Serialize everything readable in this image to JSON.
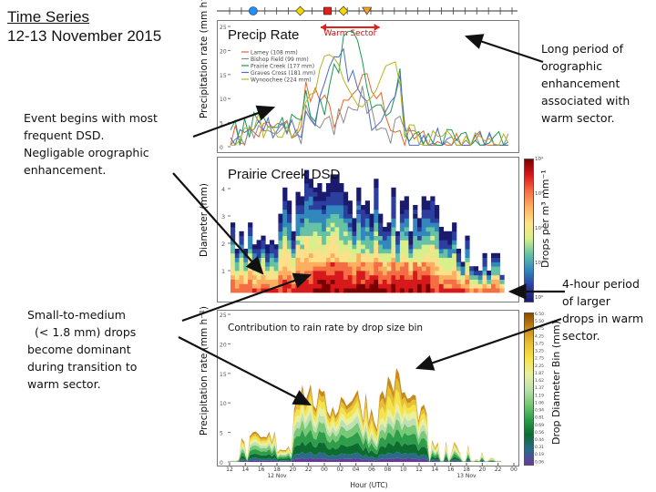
{
  "title": {
    "line1": "Time Series",
    "line2": "12-13 November 2015"
  },
  "annotations": {
    "event_begins": [
      "Event begins with most",
      "frequent DSD.",
      "Negligable orographic",
      "enhancement."
    ],
    "small_to_medium": [
      "Small-to-medium",
      "(< 1.8 mm) drops",
      "become dominant",
      "during transition to",
      "warm sector."
    ],
    "long_period": [
      "Long period of",
      "orographic",
      "enhancement",
      "associated with",
      "warm sector."
    ],
    "four_hour": [
      "4-hour period",
      "of larger",
      "drops in warm",
      "sector."
    ]
  },
  "colors": {
    "warm_sector": "#e0201a",
    "arrow": "#111111"
  },
  "chart_data": [
    {
      "type": "line",
      "title": "Precip Rate",
      "warm_sector_label": "Warm Sector",
      "ylabel": "Precipitation rate (mm h⁻¹)",
      "xlabel": "",
      "ylim": [
        0,
        25
      ],
      "yticks": [
        0,
        5,
        10,
        15,
        20,
        25
      ],
      "markers": [
        {
          "hour": 3.0,
          "shape": "circle",
          "color": "#1e90ff"
        },
        {
          "hour": 9.0,
          "shape": "diamond",
          "color": "#f2d800"
        },
        {
          "hour": 12.5,
          "shape": "square",
          "color": "#e0201a"
        },
        {
          "hour": 14.5,
          "shape": "diamond",
          "color": "#f2d800"
        },
        {
          "hour": 17.5,
          "shape": "triangle",
          "color": "#f0a020"
        }
      ],
      "warm_sector_range": [
        11.5,
        19.0
      ],
      "series": [
        {
          "name": "Lamey (108 mm)",
          "color": "#e8632a"
        },
        {
          "name": "Bishop Field (99 mm)",
          "color": "#8a8a8a"
        },
        {
          "name": "Prairie Creek (177 mm)",
          "color": "#1a9850"
        },
        {
          "name": "Graves Cross (181 mm)",
          "color": "#4f6bc9"
        },
        {
          "name": "Wynoochee (224 mm)",
          "color": "#b5b51f"
        }
      ]
    },
    {
      "type": "heatmap",
      "title": "Prairie Creek DSD",
      "ylabel": "Diameter (mm)",
      "yticks": [
        1,
        2,
        3,
        4
      ],
      "ylim": [
        0,
        5
      ],
      "colorbar_label": "Drops per m³ mm⁻¹",
      "colorbar_ticks": [
        "10⁴",
        "10³",
        "10²",
        "10¹",
        "10⁰"
      ]
    },
    {
      "type": "area",
      "title": "Contribution to rain rate by drop size bin",
      "ylabel": "Precipitation rate (mm h⁻¹)",
      "ylim": [
        0,
        25
      ],
      "yticks": [
        0,
        5,
        10,
        15,
        20,
        25
      ],
      "xlabel": "Hour (UTC)",
      "xticks": [
        "12",
        "14",
        "16",
        "18",
        "20",
        "22",
        "00",
        "02",
        "04",
        "06",
        "08",
        "10",
        "12",
        "14",
        "16",
        "18",
        "20",
        "22",
        "00"
      ],
      "date_labels": [
        "12 Nov",
        "13 Nov"
      ],
      "colorbar_label": "Drop Diameter Bin (mm)",
      "bins": [
        "6.50",
        "5.50",
        "4.75",
        "4.25",
        "3.75",
        "3.25",
        "2.75",
        "2.25",
        "1.87",
        "1.62",
        "1.37",
        "1.19",
        "1.06",
        "0.94",
        "0.81",
        "0.69",
        "0.56",
        "0.44",
        "0.31",
        "0.19",
        "0.06"
      ]
    }
  ]
}
